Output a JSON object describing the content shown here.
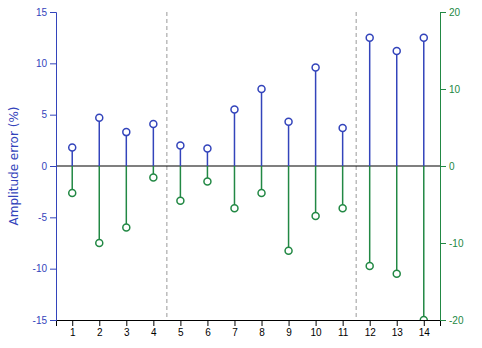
{
  "chart_data": {
    "type": "lollipop",
    "x": [
      1,
      2,
      3,
      4,
      5,
      6,
      7,
      8,
      9,
      10,
      11,
      12,
      13,
      14
    ],
    "series": [
      {
        "color": "#3344bb",
        "marker": "circle",
        "values": [
          1.8,
          4.7,
          3.3,
          4.1,
          2.0,
          1.7,
          5.5,
          7.5,
          4.3,
          9.6,
          3.7,
          12.5,
          11.2,
          12.5
        ]
      },
      {
        "color": "#228844",
        "marker": "circle",
        "axis": "y2",
        "values": [
          -3.5,
          -10.0,
          -8.0,
          -1.5,
          -4.5,
          -2.0,
          -5.5,
          -3.5,
          -11.0,
          -6.5,
          -5.5,
          -13.0,
          -14.0,
          -20.0
        ]
      }
    ],
    "ylabel": "Amplitude error (%)",
    "xlim": [
      0.4,
      14.6
    ],
    "xticks": [
      1,
      2,
      3,
      4,
      5,
      6,
      7,
      8,
      9,
      10,
      11,
      12,
      13,
      14
    ],
    "ylim": [
      -15,
      15
    ],
    "yticks": [
      -15,
      -10,
      -5,
      0,
      5,
      10,
      15
    ],
    "y2lim": [
      -20,
      20
    ],
    "y2ticks": [
      -20,
      -10,
      0,
      10,
      20
    ],
    "vlines": [
      4.5,
      11.5
    ],
    "hlines": [
      0
    ],
    "grid": false
  }
}
